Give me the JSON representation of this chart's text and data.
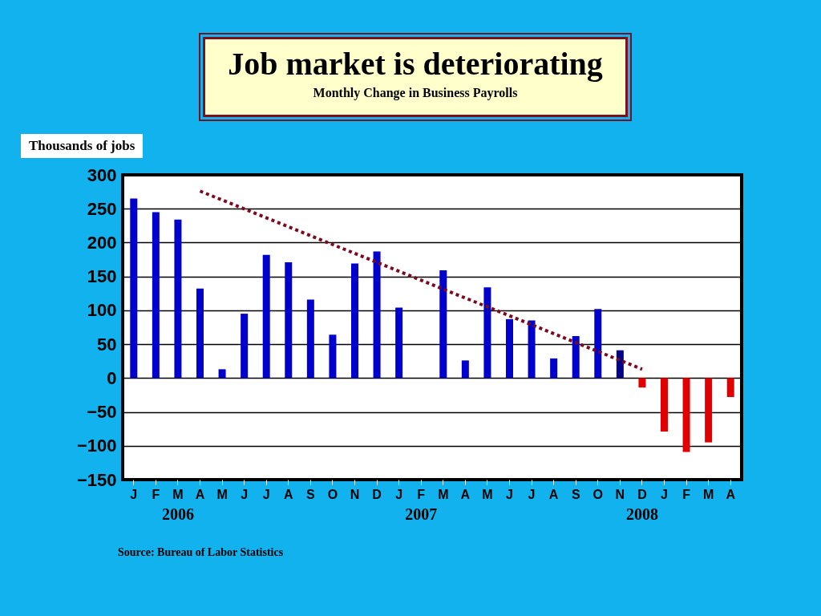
{
  "chart_data": {
    "type": "bar",
    "title": "Job market is deteriorating",
    "subtitle": "Monthly Change in Business Payrolls",
    "ylabel": "Thousands of jobs",
    "categories": [
      "J",
      "F",
      "M",
      "A",
      "M",
      "J",
      "J",
      "A",
      "S",
      "O",
      "N",
      "D",
      "J",
      "F",
      "M",
      "A",
      "M",
      "J",
      "J",
      "A",
      "S",
      "O",
      "N",
      "D",
      "J",
      "F",
      "M",
      "A"
    ],
    "series": [
      {
        "values": [
          265,
          245,
          234,
          132,
          13,
          95,
          182,
          171,
          116,
          64,
          169,
          187,
          104,
          0,
          159,
          26,
          134,
          87,
          85,
          29,
          62,
          102,
          41,
          -14,
          -79,
          -109,
          -95,
          -28
        ],
        "colors": [
          "#0000cc",
          "#0000cc",
          "#0000cc",
          "#0000cc",
          "#0000cc",
          "#0000cc",
          "#0000cc",
          "#0000cc",
          "#0000cc",
          "#0000cc",
          "#0000cc",
          "#0000cc",
          "#0000cc",
          "#0000cc",
          "#0000cc",
          "#0000cc",
          "#0000cc",
          "#0000cc",
          "#0000cc",
          "#0000cc",
          "#0000cc",
          "#0000cc",
          "#00008b",
          "#e00000",
          "#e00000",
          "#e00000",
          "#e00000",
          "#e00000"
        ]
      },
      {
        "type": "line",
        "color": "#7b0a1e",
        "line_style": "dotted",
        "values": [
          null,
          null,
          null,
          276,
          null,
          null,
          null,
          null,
          null,
          null,
          null,
          null,
          null,
          null,
          null,
          null,
          null,
          null,
          null,
          null,
          null,
          null,
          null,
          13,
          null,
          null,
          null,
          null
        ]
      }
    ],
    "ylim": [
      -150,
      300
    ],
    "yticks": [
      -150,
      -100,
      -50,
      0,
      50,
      100,
      150,
      200,
      250,
      300
    ],
    "grid": "y",
    "annotations": [
      "2006",
      "2007",
      "2008",
      "Source: Bureau of Labor Statistics"
    ]
  }
}
